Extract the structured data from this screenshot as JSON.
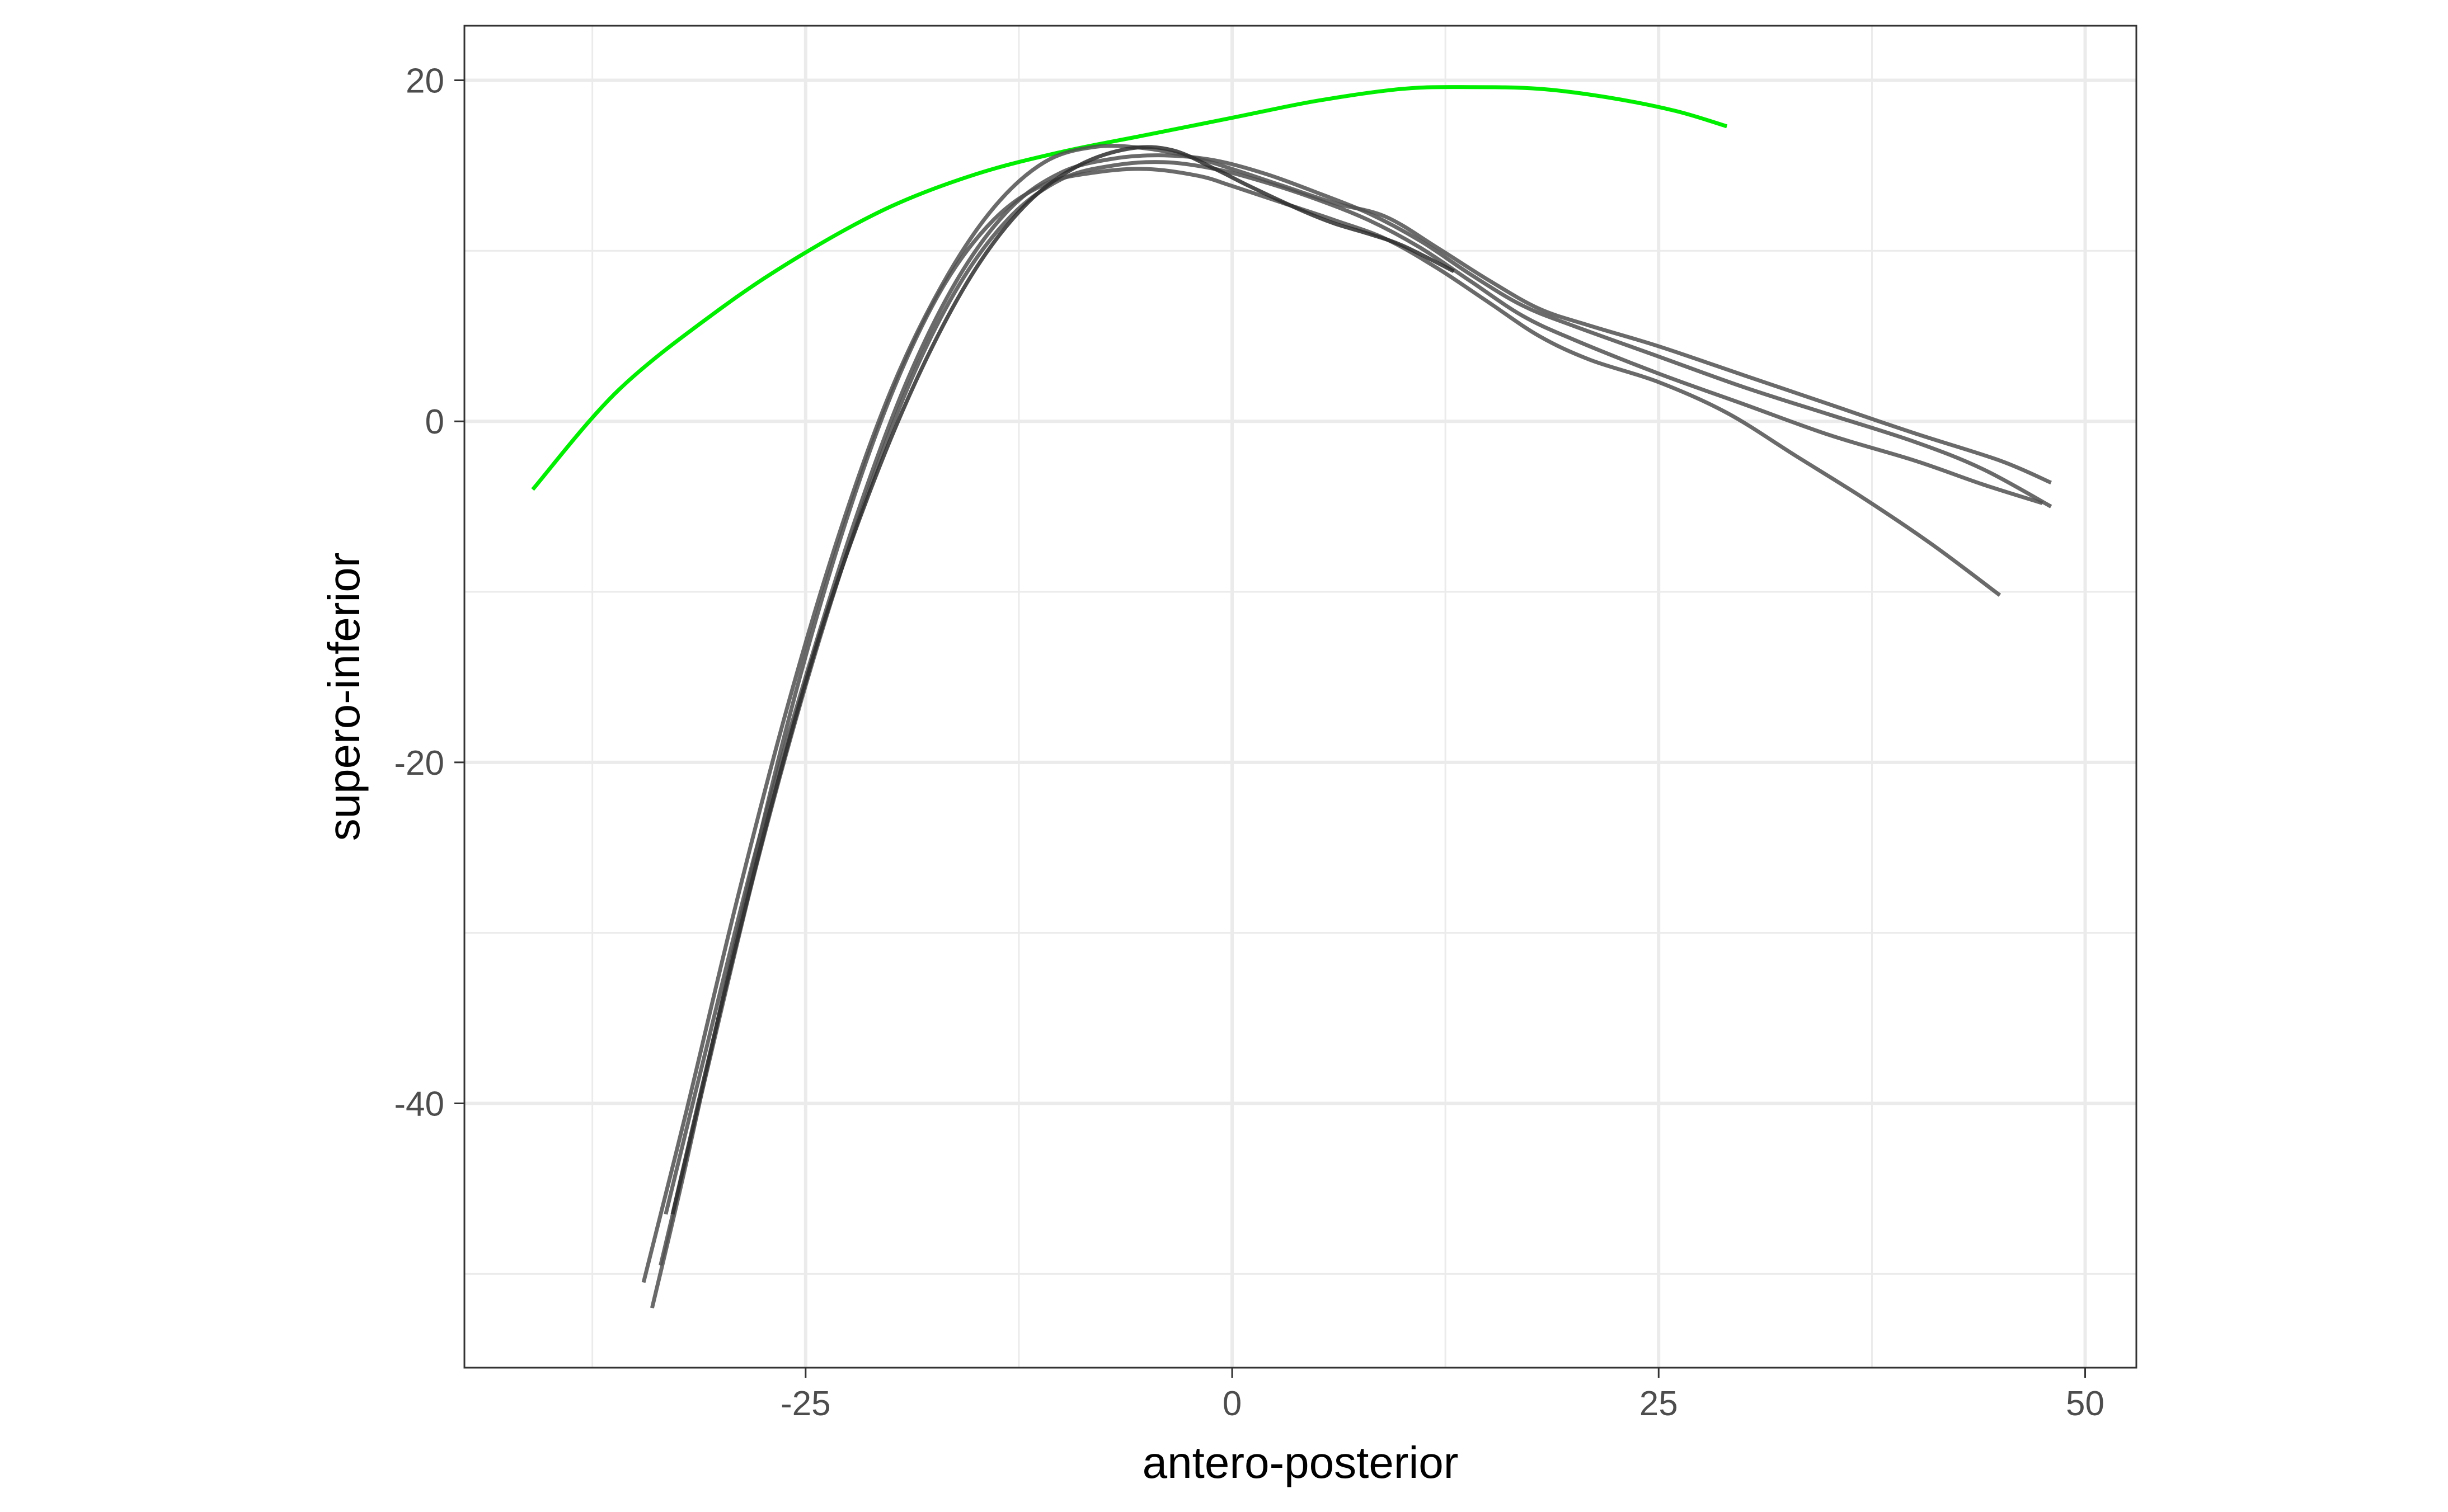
{
  "chart_data": {
    "type": "line",
    "title": "",
    "xlabel": "antero-posterior",
    "ylabel": "supero-inferior",
    "xlim": [
      -45,
      53
    ],
    "ylim": [
      -55.5,
      23.2
    ],
    "x_ticks": [
      -25,
      0,
      25,
      50
    ],
    "x_tick_labels": [
      "-25",
      "0",
      "25",
      "50"
    ],
    "x_minor": [
      -37.5,
      -12.5,
      12.5,
      37.5
    ],
    "y_ticks": [
      -40,
      -20,
      0,
      20
    ],
    "y_tick_labels": [
      "-40",
      "-20",
      "0",
      "20"
    ],
    "y_minor": [
      -50,
      -30,
      -10,
      10
    ],
    "grid": true,
    "legend": "none",
    "series": [
      {
        "color": "#00ee00",
        "points": [
          [
            -41.0,
            -4.0
          ],
          [
            -36.0,
            1.8
          ],
          [
            -30.0,
            6.6
          ],
          [
            -25.0,
            9.9
          ],
          [
            -20.0,
            12.6
          ],
          [
            -15.0,
            14.5
          ],
          [
            -10.0,
            15.8
          ],
          [
            -5.0,
            16.8
          ],
          [
            0.0,
            17.8
          ],
          [
            5.0,
            18.8
          ],
          [
            10.0,
            19.5
          ],
          [
            14.0,
            19.6
          ],
          [
            18.0,
            19.5
          ],
          [
            22.0,
            19.0
          ],
          [
            26.0,
            18.2
          ],
          [
            29.0,
            17.3
          ]
        ]
      },
      {
        "color": "#505050",
        "points": [
          [
            -34.5,
            -50.5
          ],
          [
            -32.0,
            -40.5
          ],
          [
            -29.0,
            -28.0
          ],
          [
            -26.0,
            -16.5
          ],
          [
            -23.0,
            -6.5
          ],
          [
            -20.0,
            1.8
          ],
          [
            -17.0,
            8.0
          ],
          [
            -14.0,
            12.5
          ],
          [
            -11.0,
            15.2
          ],
          [
            -8.0,
            16.1
          ],
          [
            -5.0,
            16.0
          ],
          [
            -2.0,
            15.4
          ],
          [
            0.0,
            14.8
          ],
          [
            3.0,
            13.8
          ],
          [
            6.0,
            12.8
          ],
          [
            9.0,
            12.0
          ],
          [
            12.0,
            10.2
          ],
          [
            15.0,
            8.3
          ],
          [
            18.0,
            6.6
          ],
          [
            21.0,
            5.6
          ],
          [
            25.0,
            4.4
          ],
          [
            30.0,
            2.7
          ],
          [
            35.0,
            1.0
          ],
          [
            40.0,
            -0.7
          ],
          [
            45.0,
            -2.3
          ],
          [
            48.0,
            -3.6
          ]
        ]
      },
      {
        "color": "#505050",
        "points": [
          [
            -33.2,
            -46.5
          ],
          [
            -31.0,
            -37.5
          ],
          [
            -28.0,
            -25.5
          ],
          [
            -25.0,
            -15.0
          ],
          [
            -22.0,
            -5.5
          ],
          [
            -19.0,
            2.5
          ],
          [
            -16.0,
            8.5
          ],
          [
            -13.0,
            12.5
          ],
          [
            -10.0,
            14.6
          ],
          [
            -7.0,
            15.4
          ],
          [
            -4.0,
            15.6
          ],
          [
            -1.0,
            15.3
          ],
          [
            2.0,
            14.5
          ],
          [
            5.0,
            13.4
          ],
          [
            8.0,
            12.2
          ],
          [
            11.0,
            10.6
          ],
          [
            14.0,
            8.6
          ],
          [
            17.0,
            6.8
          ],
          [
            20.0,
            5.6
          ],
          [
            25.0,
            3.8
          ],
          [
            30.0,
            2.0
          ],
          [
            35.0,
            0.4
          ],
          [
            40.0,
            -1.2
          ],
          [
            44.0,
            -2.8
          ],
          [
            48.0,
            -5.0
          ]
        ]
      },
      {
        "color": "#505050",
        "points": [
          [
            -34.0,
            -52.0
          ],
          [
            -32.0,
            -43.5
          ],
          [
            -29.0,
            -30.0
          ],
          [
            -26.0,
            -17.5
          ],
          [
            -23.0,
            -7.0
          ],
          [
            -20.0,
            1.5
          ],
          [
            -17.0,
            7.8
          ],
          [
            -14.0,
            11.8
          ],
          [
            -11.0,
            13.9
          ],
          [
            -8.0,
            14.6
          ],
          [
            -5.0,
            14.8
          ],
          [
            -2.0,
            14.4
          ],
          [
            0.0,
            13.8
          ],
          [
            3.0,
            12.8
          ],
          [
            6.0,
            11.8
          ],
          [
            9.0,
            10.7
          ],
          [
            12.0,
            9.0
          ],
          [
            15.0,
            7.0
          ],
          [
            18.0,
            5.0
          ],
          [
            21.0,
            3.6
          ],
          [
            25.0,
            2.3
          ],
          [
            29.0,
            0.5
          ],
          [
            33.0,
            -2.0
          ],
          [
            37.0,
            -4.5
          ],
          [
            41.0,
            -7.2
          ],
          [
            45.0,
            -10.2
          ]
        ]
      },
      {
        "color": "#505050",
        "points": [
          [
            -33.5,
            -49.5
          ],
          [
            -31.0,
            -39.0
          ],
          [
            -28.0,
            -26.5
          ],
          [
            -25.0,
            -15.5
          ],
          [
            -22.0,
            -6.0
          ],
          [
            -19.0,
            2.0
          ],
          [
            -16.0,
            8.0
          ],
          [
            -13.0,
            12.0
          ],
          [
            -10.0,
            14.2
          ],
          [
            -7.0,
            15.0
          ],
          [
            -4.0,
            15.2
          ],
          [
            -1.0,
            14.8
          ],
          [
            2.0,
            14.0
          ],
          [
            5.0,
            13.0
          ],
          [
            8.0,
            11.8
          ],
          [
            11.0,
            10.2
          ],
          [
            14.0,
            8.2
          ],
          [
            17.0,
            6.2
          ],
          [
            20.0,
            4.8
          ],
          [
            25.0,
            2.8
          ],
          [
            30.0,
            1.0
          ],
          [
            35.0,
            -0.8
          ],
          [
            40.0,
            -2.3
          ],
          [
            44.0,
            -3.7
          ],
          [
            47.5,
            -4.8
          ]
        ]
      },
      {
        "color": "#2e2e2e",
        "points": [
          [
            -32.8,
            -46.5
          ],
          [
            -30.0,
            -34.5
          ],
          [
            -27.0,
            -22.5
          ],
          [
            -24.0,
            -12.0
          ],
          [
            -21.0,
            -3.5
          ],
          [
            -18.0,
            3.5
          ],
          [
            -15.0,
            9.0
          ],
          [
            -12.0,
            12.8
          ],
          [
            -9.0,
            15.0
          ],
          [
            -6.0,
            16.0
          ],
          [
            -3.5,
            15.9
          ],
          [
            -1.0,
            14.8
          ],
          [
            1.0,
            13.8
          ],
          [
            4.0,
            12.4
          ],
          [
            6.0,
            11.6
          ],
          [
            8.0,
            11.0
          ],
          [
            10.0,
            10.3
          ],
          [
            13.0,
            8.8
          ]
        ]
      }
    ]
  }
}
